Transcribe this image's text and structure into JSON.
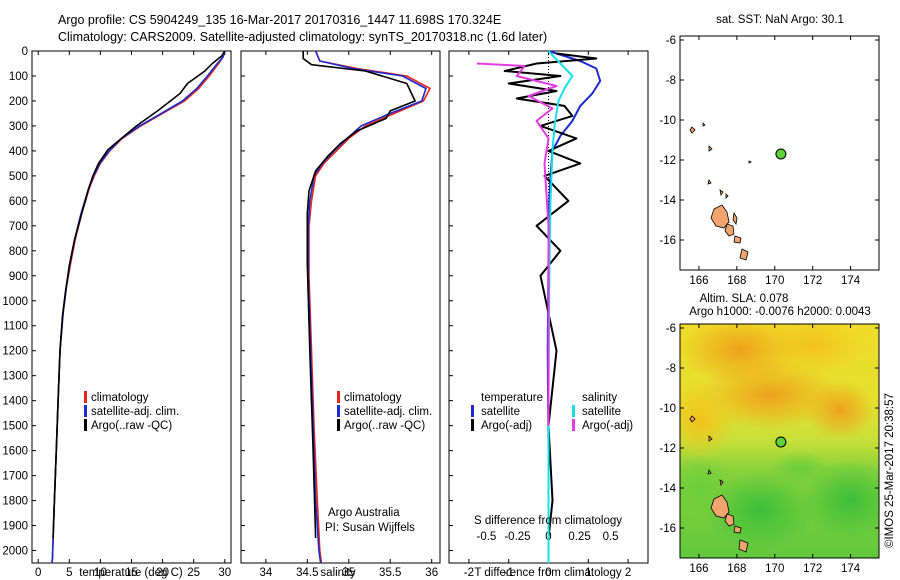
{
  "header": {
    "line1": "Argo profile: CS 5904249_135 16-Mar-2017 20170316_1447 11.698S 170.324E",
    "line2": "Climatology: CARS2009. Satellite-adjusted climatology: synTS_20170318.nc (1.6d later)"
  },
  "colors": {
    "climatology": "#e8251b",
    "satellite": "#1c2ad0",
    "argo": "#000000",
    "satellite_salinity": "#17e0e8",
    "argo_salinity": "#e23be2",
    "marker": "#5fd23a",
    "land": "#f2a46e"
  },
  "chart_data": [
    {
      "type": "line",
      "panel": "temperature",
      "xlabel": "temperature (deg C)",
      "ylabel": "",
      "xlim": [
        -1,
        31
      ],
      "ylim": [
        2050,
        0
      ],
      "xticks": [
        "0",
        "5",
        "10",
        "15",
        "20",
        "25",
        "30"
      ],
      "yticks": [
        "0",
        "100",
        "200",
        "300",
        "400",
        "500",
        "600",
        "700",
        "800",
        "900",
        "1000",
        "1100",
        "1200",
        "1300",
        "1400",
        "1500",
        "1600",
        "1700",
        "1800",
        "1900",
        "2000"
      ],
      "legend": [
        "climatology",
        "satellite-adj. clim.",
        "Argo(..raw -QC)"
      ],
      "series": [
        {
          "name": "climatology",
          "color": "red",
          "x": [
            30.0,
            29.7,
            29.0,
            27.5,
            25.8,
            23.5,
            20.0,
            16.5,
            13.5,
            11.5,
            10.0,
            9.0,
            8.2,
            7.0,
            6.0,
            5.2,
            4.5,
            4.0,
            3.5,
            3.2,
            2.9,
            2.6,
            2.4,
            2.3,
            2.2
          ],
          "y": [
            0,
            25,
            50,
            100,
            150,
            200,
            250,
            300,
            350,
            400,
            450,
            500,
            550,
            650,
            750,
            850,
            950,
            1050,
            1200,
            1400,
            1600,
            1800,
            1950,
            2030,
            2050
          ]
        },
        {
          "name": "satellite-adj. clim.",
          "color": "blue",
          "x": [
            30.0,
            29.7,
            28.8,
            27.2,
            25.5,
            23.2,
            19.8,
            16.3,
            13.4,
            11.4,
            9.9,
            8.9,
            8.1,
            6.9,
            5.9,
            5.1,
            4.5,
            4.0,
            3.5,
            3.2,
            2.9,
            2.6,
            2.4,
            2.3,
            2.2
          ],
          "y": [
            0,
            25,
            50,
            100,
            150,
            200,
            250,
            300,
            350,
            400,
            450,
            500,
            550,
            650,
            750,
            850,
            950,
            1050,
            1200,
            1400,
            1600,
            1800,
            1950,
            2030,
            2050
          ]
        },
        {
          "name": "Argo(..raw -QC)",
          "color": "black",
          "x": [
            30.0,
            29.5,
            28.0,
            26.8,
            24.0,
            22.8,
            19.2,
            15.8,
            13.6,
            11.2,
            9.7,
            8.8,
            8.0,
            6.9,
            5.8,
            5.0,
            4.4,
            3.9,
            3.5,
            3.2,
            2.9,
            2.6,
            2.4
          ],
          "y": [
            0,
            20,
            50,
            80,
            130,
            170,
            240,
            300,
            345,
            395,
            450,
            500,
            560,
            660,
            760,
            860,
            960,
            1060,
            1200,
            1400,
            1600,
            1800,
            1950
          ]
        }
      ]
    },
    {
      "type": "line",
      "panel": "salinity",
      "xlabel": "salinity",
      "xlim": [
        33.7,
        36.1
      ],
      "ylim": [
        2050,
        0
      ],
      "xticks": [
        "34",
        "34.5",
        "35",
        "35.5",
        "36"
      ],
      "legend": [
        "climatology",
        "satellite-adj. clim.",
        "Argo(..raw -QC)"
      ],
      "annotation": [
        "Argo Australia",
        "PI: Susan Wijffels"
      ],
      "series": [
        {
          "name": "climatology",
          "color": "red",
          "x": [
            34.6,
            34.65,
            35.1,
            35.7,
            35.98,
            35.9,
            35.55,
            35.2,
            35.0,
            34.85,
            34.7,
            34.6,
            34.55,
            34.52,
            34.52,
            34.55,
            34.58,
            34.62,
            34.65,
            34.67
          ],
          "y": [
            0,
            40,
            70,
            100,
            150,
            200,
            250,
            300,
            350,
            400,
            450,
            500,
            600,
            700,
            900,
            1200,
            1500,
            1800,
            2000,
            2050
          ]
        },
        {
          "name": "satellite-adj. clim.",
          "color": "blue",
          "x": [
            34.6,
            34.65,
            35.05,
            35.65,
            35.93,
            35.88,
            35.5,
            35.15,
            34.98,
            34.82,
            34.68,
            34.58,
            34.53,
            34.51,
            34.51,
            34.54,
            34.57,
            34.6,
            34.64,
            34.66
          ],
          "y": [
            0,
            40,
            70,
            100,
            150,
            200,
            250,
            300,
            350,
            400,
            450,
            500,
            600,
            700,
            900,
            1200,
            1500,
            1800,
            2000,
            2050
          ]
        },
        {
          "name": "Argo(..raw -QC)",
          "color": "black",
          "x": [
            34.45,
            34.45,
            34.55,
            35.2,
            35.7,
            35.8,
            35.5,
            35.45,
            35.1,
            34.9,
            34.75,
            34.6,
            34.52,
            34.5,
            34.5,
            34.53,
            34.57,
            34.6
          ],
          "y": [
            0,
            30,
            55,
            80,
            130,
            200,
            240,
            270,
            320,
            370,
            420,
            480,
            560,
            650,
            850,
            1200,
            1600,
            1950
          ]
        }
      ]
    },
    {
      "type": "line",
      "panel": "difference",
      "xlabel": "T difference from climatology",
      "xlabel_top": "S difference from climatology",
      "xlim": [
        -2.5,
        2.5
      ],
      "ylim": [
        2050,
        0
      ],
      "xticks": [
        "-2",
        "-1",
        "0",
        "1",
        "2"
      ],
      "xticks_salinity": [
        "-0.5",
        "-0.25",
        "0",
        "0.25",
        "0.5"
      ],
      "legend": [
        "temperature",
        "satellite",
        "Argo(-adj)",
        "salinity",
        "satellite",
        "Argo(-adj)"
      ],
      "series": [
        {
          "name": "temperature satellite",
          "color": "blue",
          "x": [
            0.0,
            0.4,
            0.8,
            1.2,
            1.3,
            1.1,
            0.8,
            0.6,
            0.3,
            0.1,
            0.05,
            0.02,
            0.0,
            -0.02,
            0.0,
            0.0
          ],
          "y": [
            0,
            20,
            40,
            70,
            120,
            170,
            220,
            280,
            340,
            400,
            500,
            600,
            800,
            1200,
            1600,
            2050
          ]
        },
        {
          "name": "temperature Argo(-adj)",
          "color": "black",
          "x": [
            0.2,
            1.2,
            -0.3,
            -1.1,
            0.3,
            -1.0,
            0.2,
            -0.8,
            0.4,
            0.6,
            -0.2,
            0.7,
            0.0,
            0.8,
            -0.1,
            0.5,
            0.1,
            -0.3,
            0.3,
            -0.2,
            0.2,
            0.0,
            0.1,
            0.0
          ],
          "y": [
            10,
            30,
            50,
            80,
            100,
            130,
            160,
            190,
            220,
            260,
            300,
            350,
            400,
            450,
            500,
            600,
            650,
            700,
            800,
            900,
            1200,
            1500,
            1800,
            1950
          ]
        },
        {
          "name": "salinity satellite",
          "color": "cyan",
          "x": [
            0.0,
            0.3,
            0.6,
            0.4,
            0.25,
            0.15,
            0.1,
            0.05,
            0.02,
            0.0,
            0.0
          ],
          "y": [
            0,
            50,
            100,
            150,
            200,
            300,
            400,
            600,
            900,
            1400,
            2050
          ]
        },
        {
          "name": "salinity Argo(-adj)",
          "color": "magenta",
          "x": [
            -1.8,
            -0.6,
            -0.8,
            0.2,
            -0.5,
            0.1,
            -0.3,
            0.0,
            -0.1,
            0.0,
            0.0
          ],
          "y": [
            50,
            60,
            100,
            140,
            180,
            230,
            280,
            350,
            450,
            700,
            1500
          ]
        }
      ]
    },
    {
      "type": "scatter",
      "panel": "map_sst",
      "title": "sat. SST: NaN Argo: 30.1",
      "xlim": [
        165,
        175.5
      ],
      "ylim": [
        -17.5,
        -5.8
      ],
      "xticks": [
        "166",
        "168",
        "170",
        "172",
        "174"
      ],
      "yticks": [
        "-6",
        "-8",
        "-10",
        "-12",
        "-14",
        "-16"
      ],
      "points": [
        {
          "x": 170.324,
          "y": -11.698
        }
      ]
    },
    {
      "type": "heatmap",
      "panel": "map_sla",
      "title": "Altim. SLA: 0.078",
      "subtitle": "Argo h1000: -0.0076 h2000: 0.0043",
      "xlim": [
        165,
        175.5
      ],
      "ylim": [
        -17.5,
        -5.8
      ],
      "xticks": [
        "166",
        "168",
        "170",
        "172",
        "174"
      ],
      "yticks": [
        "-6",
        "-8",
        "-10",
        "-12",
        "-14",
        "-16"
      ],
      "points": [
        {
          "x": 170.324,
          "y": -11.698
        }
      ]
    }
  ],
  "footer": {
    "stamp": "©IMOS 25-Mar-2017 20:38:57"
  }
}
